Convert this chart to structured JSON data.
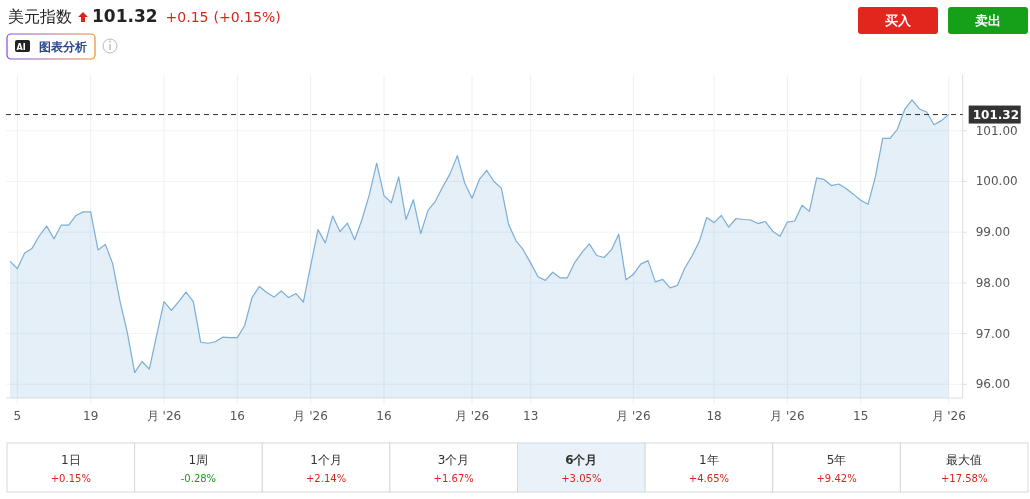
{
  "chart_data": {
    "type": "area",
    "title": "美元指数",
    "annotations": [
      "101.32",
      "+0.15",
      "(+0.15%)",
      "AI",
      "图表分析",
      "买入",
      "卖出",
      "1日",
      "+0.15%",
      "1周",
      "-0.28%",
      "1个月",
      "+2.14%",
      "3个月",
      "+1.67%",
      "6个月",
      "+3.05%",
      "1年",
      "+4.65%",
      "5年",
      "+9.42%",
      "最大值",
      "+17.58%"
    ],
    "categories": [
      null,
      "5",
      null,
      null,
      null,
      null,
      null,
      null,
      null,
      null,
      null,
      "19",
      null,
      null,
      null,
      null,
      null,
      null,
      null,
      null,
      null,
      "月 '26",
      null,
      null,
      null,
      null,
      null,
      null,
      null,
      null,
      null,
      "16",
      null,
      null,
      null,
      null,
      null,
      null,
      null,
      null,
      null,
      "月 '26",
      null,
      null,
      null,
      null,
      null,
      null,
      null,
      null,
      null,
      "16",
      null,
      null,
      null,
      null,
      null,
      null,
      null,
      null,
      null,
      null,
      null,
      "月 '26",
      null,
      null,
      null,
      null,
      null,
      null,
      null,
      "13",
      null,
      null,
      null,
      null,
      null,
      null,
      null,
      null,
      null,
      null,
      null,
      null,
      null,
      "月 '26",
      null,
      null,
      null,
      null,
      null,
      null,
      null,
      null,
      null,
      null,
      "18",
      null,
      null,
      null,
      null,
      null,
      null,
      null,
      null,
      null,
      "月 '26",
      null,
      null,
      null,
      null,
      null,
      null,
      null,
      null,
      null,
      "15",
      null,
      null,
      null,
      null,
      null,
      null,
      null,
      null,
      null,
      null,
      null,
      "月 '26"
    ],
    "series": [
      {
        "color": "#7aaed6",
        "values": [
          98.43,
          98.28,
          98.59,
          98.68,
          98.93,
          99.12,
          98.87,
          99.14,
          99.14,
          99.33,
          99.4,
          99.4,
          98.65,
          98.76,
          98.38,
          97.64,
          97.02,
          96.23,
          96.45,
          96.3,
          96.97,
          97.63,
          97.46,
          97.63,
          97.82,
          97.63,
          96.83,
          96.81,
          96.84,
          96.93,
          96.92,
          96.92,
          97.16,
          97.71,
          97.93,
          97.81,
          97.72,
          97.84,
          97.71,
          97.79,
          97.62,
          98.34,
          99.05,
          98.79,
          99.32,
          99.01,
          99.18,
          98.85,
          99.25,
          99.74,
          100.36,
          99.72,
          99.58,
          100.09,
          99.25,
          99.64,
          98.97,
          99.43,
          99.61,
          99.89,
          100.15,
          100.51,
          99.97,
          99.67,
          100.04,
          100.22,
          100.0,
          99.87,
          99.15,
          98.83,
          98.65,
          98.39,
          98.12,
          98.05,
          98.21,
          98.1,
          98.1,
          98.4,
          98.6,
          98.77,
          98.54,
          98.5,
          98.65,
          98.96,
          98.06,
          98.17,
          98.37,
          98.44,
          98.02,
          98.07,
          97.9,
          97.95,
          98.29,
          98.53,
          98.82,
          99.29,
          99.19,
          99.33,
          99.1,
          99.27,
          99.25,
          99.24,
          99.17,
          99.21,
          99.02,
          98.92,
          99.2,
          99.22,
          99.53,
          99.41,
          100.07,
          100.04,
          99.92,
          99.95,
          99.86,
          99.75,
          99.63,
          99.55,
          100.09,
          100.85,
          100.85,
          101.03,
          101.42,
          101.61,
          101.43,
          101.37,
          101.12,
          101.2,
          101.32
        ]
      }
    ],
    "ylim": [
      95.73,
      102.1
    ],
    "yticks": [
      {
        "value": 96,
        "label": "96.00"
      },
      {
        "value": 97,
        "label": "97.00"
      },
      {
        "value": 98,
        "label": "98.00"
      },
      {
        "value": 99,
        "label": "99.00"
      },
      {
        "value": 100,
        "label": "100.00"
      },
      {
        "value": 101,
        "label": "101.00"
      }
    ],
    "ref_lines": [
      {
        "axis": "y",
        "value": 101.32,
        "label": "101.32",
        "color": "#333333",
        "line_style": "dashed"
      }
    ],
    "grid": true
  }
}
